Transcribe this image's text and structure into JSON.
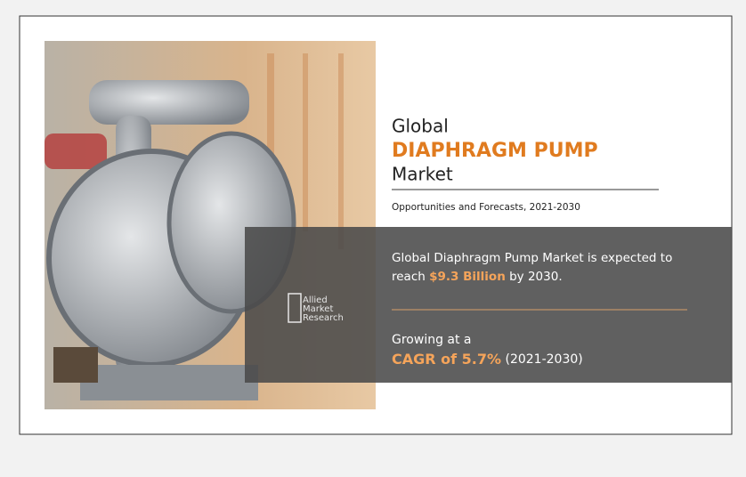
{
  "header": {
    "line1": "Global",
    "highlight": "DIAPHRAGM PUMP",
    "line3": "Market",
    "subtitle": "Opportunities and Forecasts, 2021-2030"
  },
  "statement": {
    "line1": "Global Diaphragm Pump Market is expected to",
    "before": "reach",
    "value": "$9.3 Billion",
    "after": "by 2030."
  },
  "growth": {
    "intro": "Growing at a",
    "value": "CAGR of 5.7%",
    "period": "(2021-2030)"
  },
  "logo": [
    "Allied",
    "Market",
    "Research"
  ]
}
